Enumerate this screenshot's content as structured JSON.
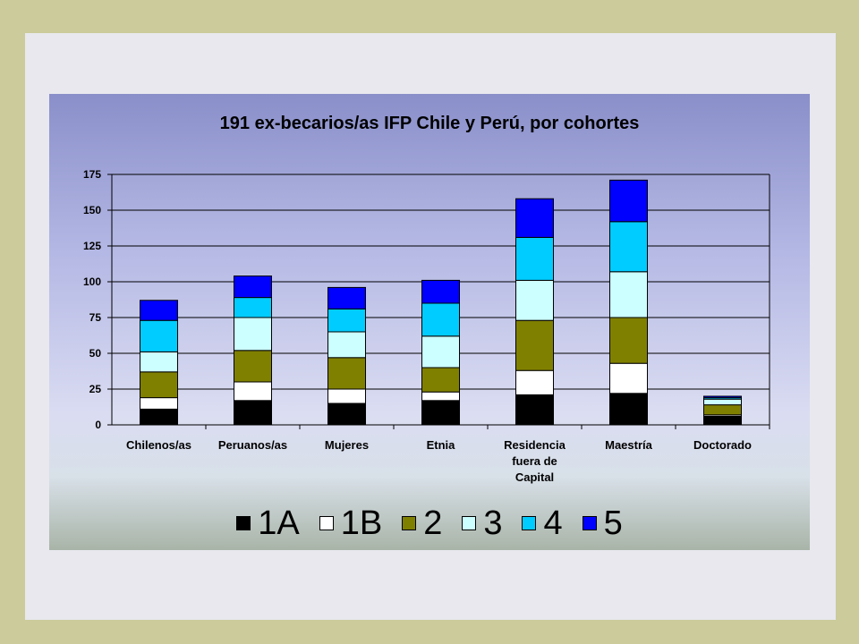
{
  "chart_data": {
    "type": "bar",
    "stacked": true,
    "title": "191 ex-becarios/as IFP Chile y Perú, por cohortes",
    "xlabel": "",
    "ylabel": "",
    "ylim": [
      0,
      175
    ],
    "yticks": [
      0,
      25,
      50,
      75,
      100,
      125,
      150,
      175
    ],
    "grid": true,
    "legend_position": "bottom",
    "categories": [
      "Chilenos/as",
      "Peruanos/as",
      "Mujeres",
      "Etnia",
      "Residencia fuera de Capital",
      "Maestría",
      "Doctorado"
    ],
    "category_lines": [
      [
        "Chilenos/as"
      ],
      [
        "Peruanos/as"
      ],
      [
        "Mujeres"
      ],
      [
        "Etnia"
      ],
      [
        "Residencia",
        "fuera de",
        "Capital"
      ],
      [
        "Maestría"
      ],
      [
        "Doctorado"
      ]
    ],
    "series": [
      {
        "name": "1A",
        "color": "#000000",
        "values": [
          11,
          17,
          15,
          17,
          21,
          22,
          6
        ]
      },
      {
        "name": "1B",
        "color": "#ffffff",
        "values": [
          8,
          13,
          10,
          6,
          17,
          21,
          1
        ]
      },
      {
        "name": "2",
        "color": "#808000",
        "values": [
          18,
          22,
          22,
          17,
          35,
          32,
          7
        ]
      },
      {
        "name": "3",
        "color": "#ccffff",
        "values": [
          14,
          23,
          18,
          22,
          28,
          32,
          4
        ]
      },
      {
        "name": "4",
        "color": "#00ccff",
        "values": [
          22,
          14,
          16,
          23,
          30,
          35,
          1
        ]
      },
      {
        "name": "5",
        "color": "#0000ff",
        "values": [
          14,
          15,
          15,
          16,
          27,
          29,
          1
        ]
      }
    ]
  }
}
